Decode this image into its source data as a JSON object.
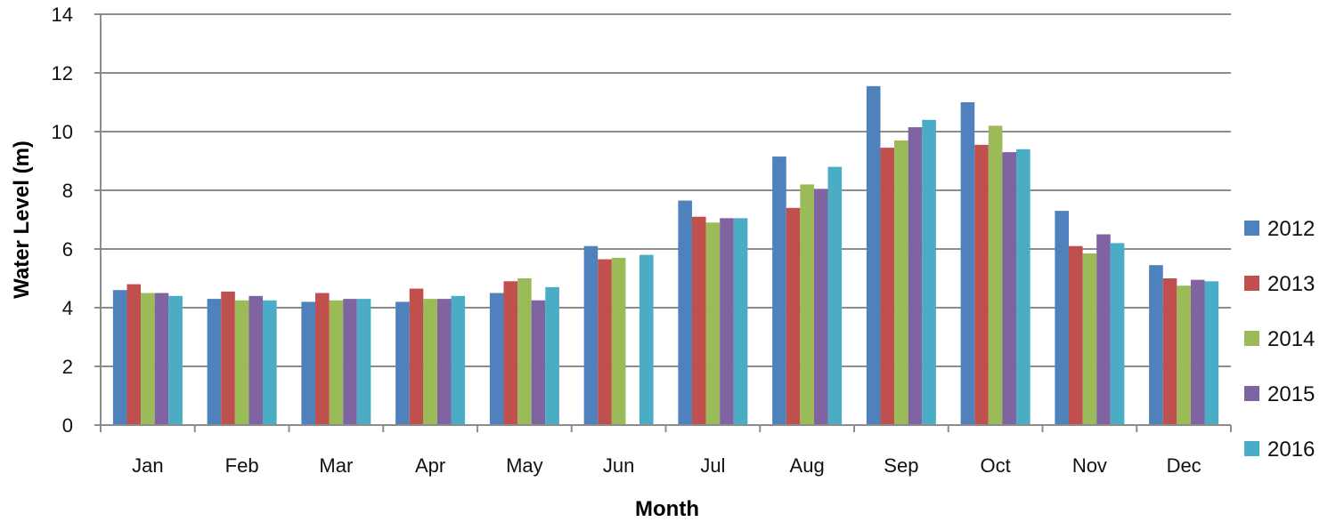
{
  "chart_data": {
    "type": "bar",
    "title": "",
    "xlabel": "Month",
    "ylabel": "Water Level (m)",
    "ylim": [
      0,
      14
    ],
    "yticks": [
      0,
      2,
      4,
      6,
      8,
      10,
      12,
      14
    ],
    "grid": "horizontal",
    "legend_position": "right",
    "categories": [
      "Jan",
      "Feb",
      "Mar",
      "Apr",
      "May",
      "Jun",
      "Jul",
      "Aug",
      "Sep",
      "Oct",
      "Nov",
      "Dec"
    ],
    "series": [
      {
        "name": "2012",
        "color": "#4F81BD",
        "values": [
          4.6,
          4.3,
          4.2,
          4.2,
          4.5,
          6.1,
          7.65,
          9.15,
          11.55,
          11.0,
          7.3,
          5.45
        ]
      },
      {
        "name": "2013",
        "color": "#C0504D",
        "values": [
          4.8,
          4.55,
          4.5,
          4.65,
          4.9,
          5.65,
          7.1,
          7.4,
          9.45,
          9.55,
          6.1,
          5.0
        ]
      },
      {
        "name": "2014",
        "color": "#9BBB59",
        "values": [
          4.5,
          4.25,
          4.25,
          4.3,
          5.0,
          5.7,
          6.9,
          8.2,
          9.7,
          10.2,
          5.85,
          4.75
        ]
      },
      {
        "name": "2015",
        "color": "#8064A2",
        "values": [
          4.5,
          4.4,
          4.3,
          4.3,
          4.25,
          null,
          7.05,
          8.05,
          10.15,
          9.3,
          6.5,
          4.95
        ]
      },
      {
        "name": "2016",
        "color": "#4BACC6",
        "values": [
          4.4,
          4.25,
          4.3,
          4.4,
          4.7,
          5.8,
          7.05,
          8.8,
          10.4,
          9.4,
          6.2,
          4.9
        ]
      }
    ]
  }
}
